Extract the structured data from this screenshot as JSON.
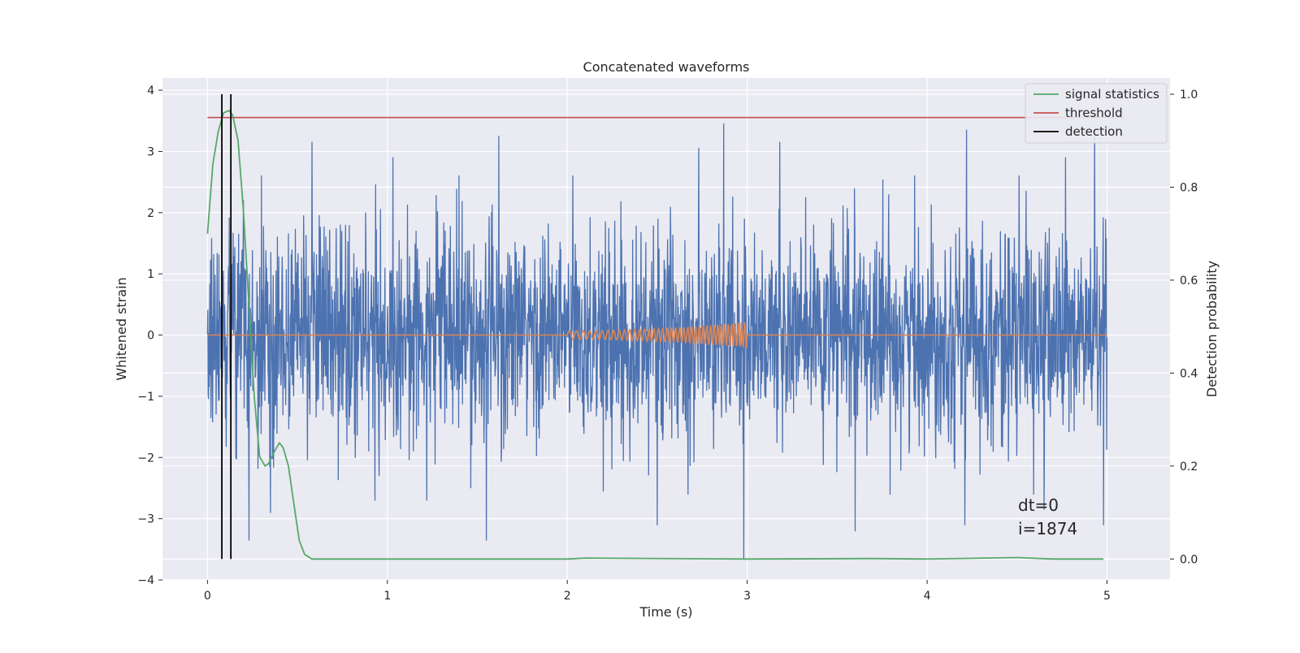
{
  "chart_data": {
    "type": "line",
    "title": "Concatenated waveforms",
    "xlabel": "Time (s)",
    "ylabel": "Whitened strain",
    "ylabel_right": "Detection probability",
    "xlim": [
      -0.25,
      5.35
    ],
    "ylim": [
      -4.0,
      4.2
    ],
    "ylim_right": [
      -0.045,
      1.035
    ],
    "x_ticks": [
      "0",
      "1",
      "2",
      "3",
      "4",
      "5"
    ],
    "x_tick_values": [
      0,
      1,
      2,
      3,
      4,
      5
    ],
    "y_ticks": [
      "4",
      "3",
      "2",
      "1",
      "0",
      "−1",
      "−2",
      "−3",
      "−4"
    ],
    "y_tick_values": [
      4,
      3,
      2,
      1,
      0,
      -1,
      -2,
      -3,
      -4
    ],
    "y2_ticks": [
      "1.0",
      "0.8",
      "0.6",
      "0.4",
      "0.2",
      "0.0"
    ],
    "y2_tick_values": [
      1.0,
      0.8,
      0.6,
      0.4,
      0.2,
      0.0
    ],
    "grid": true,
    "legend_position": "top-right",
    "legend": [
      {
        "label": "signal statistics",
        "color": "#55a868"
      },
      {
        "label": "threshold",
        "color": "#c44e52"
      },
      {
        "label": "detection",
        "color": "#000000"
      }
    ],
    "series": [
      {
        "name": "strain",
        "color": "#4c72b0",
        "axis": "left",
        "description": "whitened noise samples",
        "x_range": [
          0,
          5
        ],
        "std": 0.85,
        "extremes": [
          {
            "x": 0.08,
            "y": 1.9
          },
          {
            "x": 0.2,
            "y": 2.2
          },
          {
            "x": 0.23,
            "y": -3.35
          },
          {
            "x": 0.35,
            "y": -2.9
          },
          {
            "x": 0.58,
            "y": 3.15
          },
          {
            "x": 0.93,
            "y": -2.7
          },
          {
            "x": 1.03,
            "y": 2.9
          },
          {
            "x": 1.22,
            "y": -2.7
          },
          {
            "x": 1.55,
            "y": -3.35
          },
          {
            "x": 1.62,
            "y": 3.25
          },
          {
            "x": 2.2,
            "y": -2.55
          },
          {
            "x": 2.5,
            "y": -3.1
          },
          {
            "x": 2.73,
            "y": 3.05
          },
          {
            "x": 2.87,
            "y": 3.45
          },
          {
            "x": 2.98,
            "y": -3.65
          },
          {
            "x": 3.18,
            "y": 3.15
          },
          {
            "x": 3.6,
            "y": -3.2
          },
          {
            "x": 4.21,
            "y": -3.1
          },
          {
            "x": 4.22,
            "y": 3.35
          },
          {
            "x": 4.55,
            "y": 2.35
          },
          {
            "x": 4.65,
            "y": -2.85
          },
          {
            "x": 4.77,
            "y": 2.9
          },
          {
            "x": 4.93,
            "y": 3.35
          },
          {
            "x": 4.98,
            "y": -3.1
          }
        ]
      },
      {
        "name": "injected waveform",
        "color": "#dd8452",
        "axis": "left",
        "chirp": {
          "t_start": 2.0,
          "t_end": 3.0,
          "amp_start": 0.07,
          "amp_end": 0.22,
          "f_start": 24,
          "f_end": 56
        }
      },
      {
        "name": "signal statistics",
        "color": "#55a868",
        "axis": "right",
        "x": [
          0.0,
          0.03,
          0.06,
          0.09,
          0.12,
          0.14,
          0.17,
          0.2,
          0.23,
          0.26,
          0.29,
          0.32,
          0.34,
          0.37,
          0.4,
          0.42,
          0.45,
          0.48,
          0.51,
          0.54,
          0.58,
          0.7,
          1.0,
          2.0,
          2.1,
          3.0,
          3.7,
          4.0,
          4.5,
          4.7,
          4.98
        ],
        "y": [
          0.7,
          0.85,
          0.92,
          0.96,
          0.965,
          0.955,
          0.9,
          0.75,
          0.55,
          0.35,
          0.22,
          0.2,
          0.205,
          0.23,
          0.25,
          0.24,
          0.2,
          0.12,
          0.04,
          0.01,
          0.0,
          0.0,
          0.0,
          0.0,
          0.002,
          0.0,
          0.001,
          0.0,
          0.003,
          0.0,
          0.0
        ]
      },
      {
        "name": "threshold",
        "color": "#c44e52",
        "axis": "right",
        "x": [
          0.0,
          5.1
        ],
        "y": [
          0.95,
          0.95
        ]
      },
      {
        "name": "detection",
        "color": "#000000",
        "axis": "right",
        "vlines": [
          0.08,
          0.13
        ]
      }
    ],
    "annotations": [
      "dt=0",
      "i=1874"
    ]
  }
}
